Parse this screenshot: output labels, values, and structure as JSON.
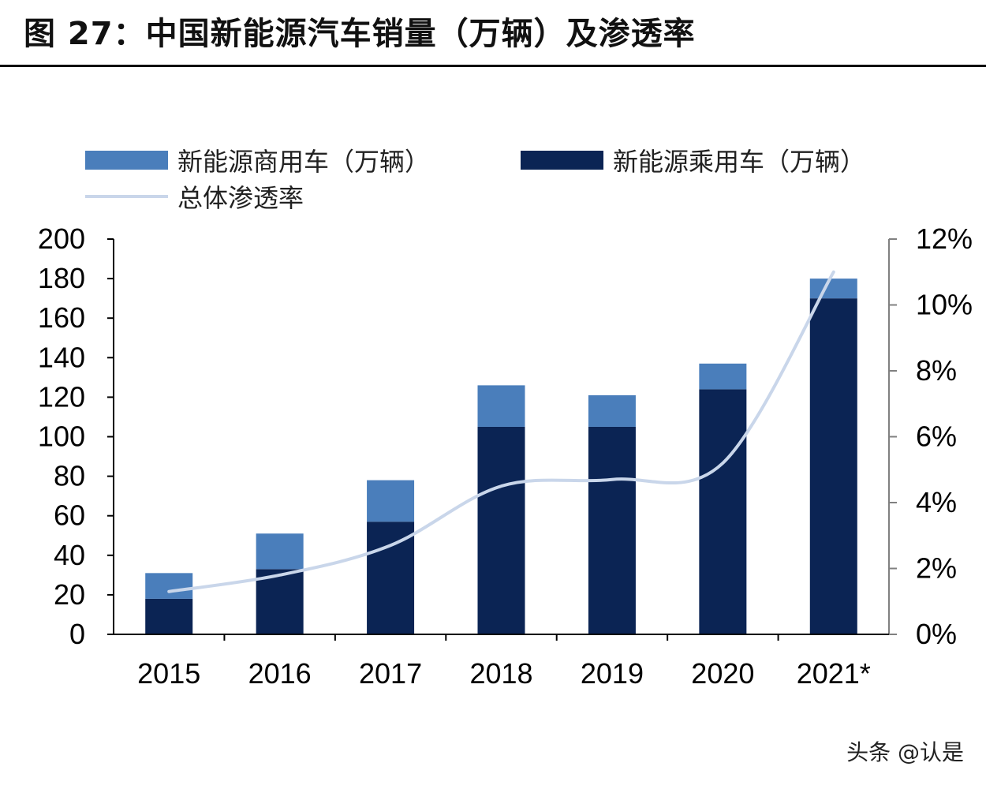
{
  "figure_title": "图 27：中国新能源汽车销量（万辆）及渗透率",
  "watermark": "头条 @认是",
  "colors": {
    "commercial": "#4a7ebb",
    "passenger": "#0b2454",
    "penetration": "#c9d6ea",
    "axis": "#000000"
  },
  "chart_data": {
    "type": "bar",
    "stacked": true,
    "categories": [
      "2015",
      "2016",
      "2017",
      "2018",
      "2019",
      "2020",
      "2021*"
    ],
    "series": [
      {
        "name": "新能源乘用车（万辆）",
        "axis": "left",
        "values": [
          18,
          33,
          57,
          105,
          105,
          124,
          170
        ]
      },
      {
        "name": "新能源商用车（万辆）",
        "axis": "left",
        "values": [
          13,
          18,
          21,
          21,
          16,
          13,
          10
        ]
      },
      {
        "name": "总体渗透率",
        "type": "line",
        "axis": "right",
        "values": [
          1.3,
          1.8,
          2.7,
          4.5,
          4.7,
          5.2,
          11.0
        ]
      }
    ],
    "ylim": [
      0,
      200
    ],
    "yticks": [
      "0",
      "20",
      "40",
      "60",
      "80",
      "100",
      "120",
      "140",
      "160",
      "180",
      "200"
    ],
    "y2lim": [
      0,
      12
    ],
    "y2ticks": [
      "0%",
      "2%",
      "4%",
      "6%",
      "8%",
      "10%",
      "12%"
    ],
    "legend_position": "top",
    "grid": false
  }
}
